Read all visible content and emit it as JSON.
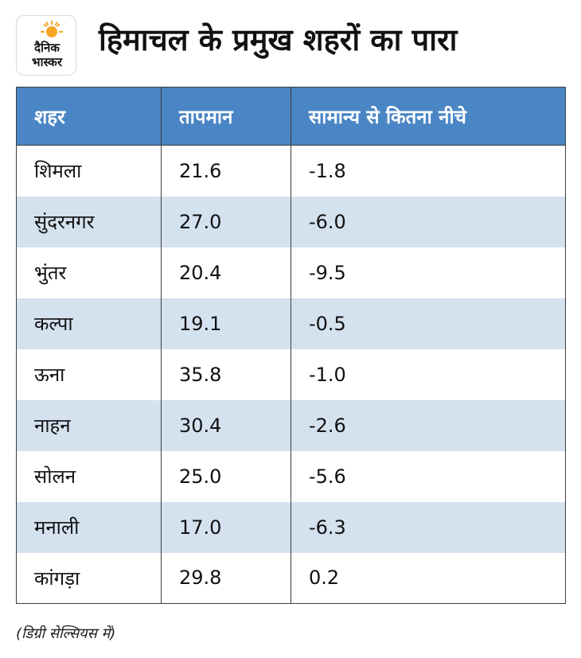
{
  "brand": {
    "logo_line1": "दैनिक",
    "logo_line2": "भास्कर",
    "accent_color": "#f5a623"
  },
  "title": "हिमाचल के प्रमुख शहरों का पारा",
  "table": {
    "header_color": "#4a86c5",
    "stripe_color": "#d4e1ef",
    "headers": [
      "शहर",
      "तापमान",
      "सामान्य से कितना नीचे"
    ],
    "rows": [
      [
        "शिमला",
        "21.6",
        "-1.8"
      ],
      [
        "सुंदरनगर",
        "27.0",
        "-6.0"
      ],
      [
        "भुंतर",
        "20.4",
        "-9.5"
      ],
      [
        "कल्पा",
        "19.1",
        "-0.5"
      ],
      [
        "ऊना",
        "35.8",
        "-1.0"
      ],
      [
        "नाहन",
        "30.4",
        "-2.6"
      ],
      [
        "सोलन",
        "25.0",
        "-5.6"
      ],
      [
        "मनाली",
        "17.0",
        "-6.3"
      ],
      [
        "कांगड़ा",
        "29.8",
        "0.2"
      ]
    ]
  },
  "footnote": "(डिग्री सेल्सियस में)"
}
